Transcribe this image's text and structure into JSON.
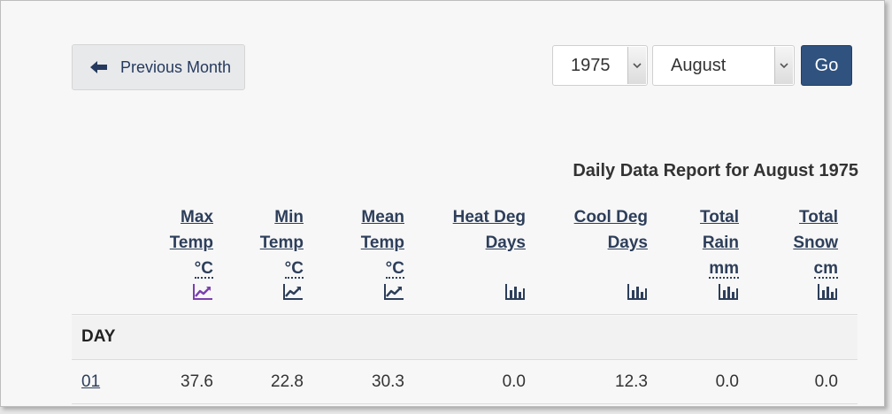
{
  "nav": {
    "prev_label": "Previous Month",
    "year_value": "1975",
    "month_value": "August",
    "go_label": "Go"
  },
  "report": {
    "title": "Daily Data Report for August 1975"
  },
  "table": {
    "day_header": "DAY",
    "columns": [
      {
        "lines": [
          "Max",
          "Temp"
        ],
        "unit": "°C",
        "chart_icon": "line-chart-icon",
        "icon_color": "#7b3fb0"
      },
      {
        "lines": [
          "Min",
          "Temp"
        ],
        "unit": "°C",
        "chart_icon": "line-chart-icon",
        "icon_color": "#2d3e5a"
      },
      {
        "lines": [
          "Mean",
          "Temp"
        ],
        "unit": "°C",
        "chart_icon": "line-chart-icon",
        "icon_color": "#2d3e5a"
      },
      {
        "lines": [
          "Heat Deg",
          "Days"
        ],
        "unit": "",
        "chart_icon": "bar-chart-icon",
        "icon_color": "#2d3e5a"
      },
      {
        "lines": [
          "Cool Deg",
          "Days"
        ],
        "unit": "",
        "chart_icon": "bar-chart-icon",
        "icon_color": "#2d3e5a"
      },
      {
        "lines": [
          "Total",
          "Rain"
        ],
        "unit": "mm",
        "chart_icon": "bar-chart-icon",
        "icon_color": "#2d3e5a"
      },
      {
        "lines": [
          "Total",
          "Snow"
        ],
        "unit": "cm",
        "chart_icon": "bar-chart-icon",
        "icon_color": "#2d3e5a"
      }
    ],
    "rows": [
      {
        "day": "01",
        "values": [
          "37.6",
          "22.8",
          "30.3",
          "0.0",
          "12.3",
          "0.0",
          "0.0"
        ]
      }
    ]
  },
  "colors": {
    "link": "#2d3e5a",
    "go_button": "#2f527f",
    "active_chart_icon": "#7b3fb0"
  }
}
